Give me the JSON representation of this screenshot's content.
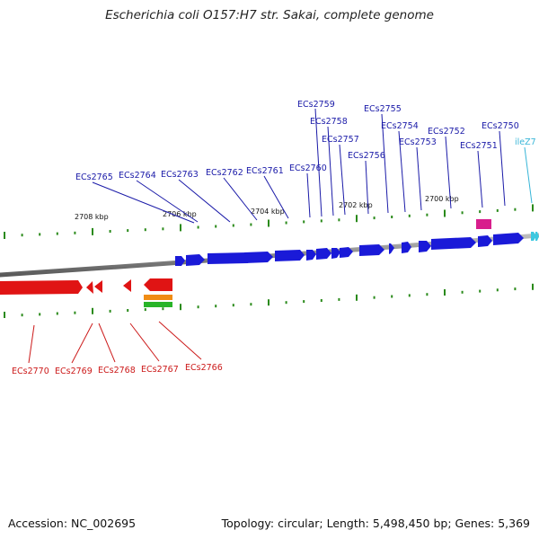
{
  "title": "Escherichia coli O157:H7 str. Sakai, complete genome",
  "accession": "Accession: NC_002695",
  "summary": "Topology: circular; Length: 5,498,450 bp; Genes: 5,369",
  "colors": {
    "forward": "#1a1ad8",
    "reverse": "#e01414",
    "rna": "#3cc8e0",
    "label_forward": "#1a1aa8",
    "label_reverse": "#cc1a1a",
    "label_rna": "#3ab6d8",
    "tick": "#2a8a1a",
    "backbone": "#8a8a8a",
    "magenta": "#d81e8c",
    "orange": "#f08c14",
    "green": "#28b428"
  },
  "scale_labels": [
    "2708 kbp",
    "2706 kbp",
    "2704 kbp",
    "2702 kbp",
    "2700 kbp"
  ],
  "forward_genes": [
    "ECs2765",
    "ECs2764",
    "ECs2763",
    "ECs2762",
    "ECs2761",
    "ECs2760",
    "ECs2759",
    "ECs2758",
    "ECs2757",
    "ECs2756",
    "ECs2755",
    "ECs2754",
    "ECs2753",
    "ECs2752",
    "ECs2751",
    "ECs2750",
    "ileZ7"
  ],
  "reverse_genes": [
    "ECs2770",
    "ECs2769",
    "ECs2768",
    "ECs2767",
    "ECs2766"
  ]
}
